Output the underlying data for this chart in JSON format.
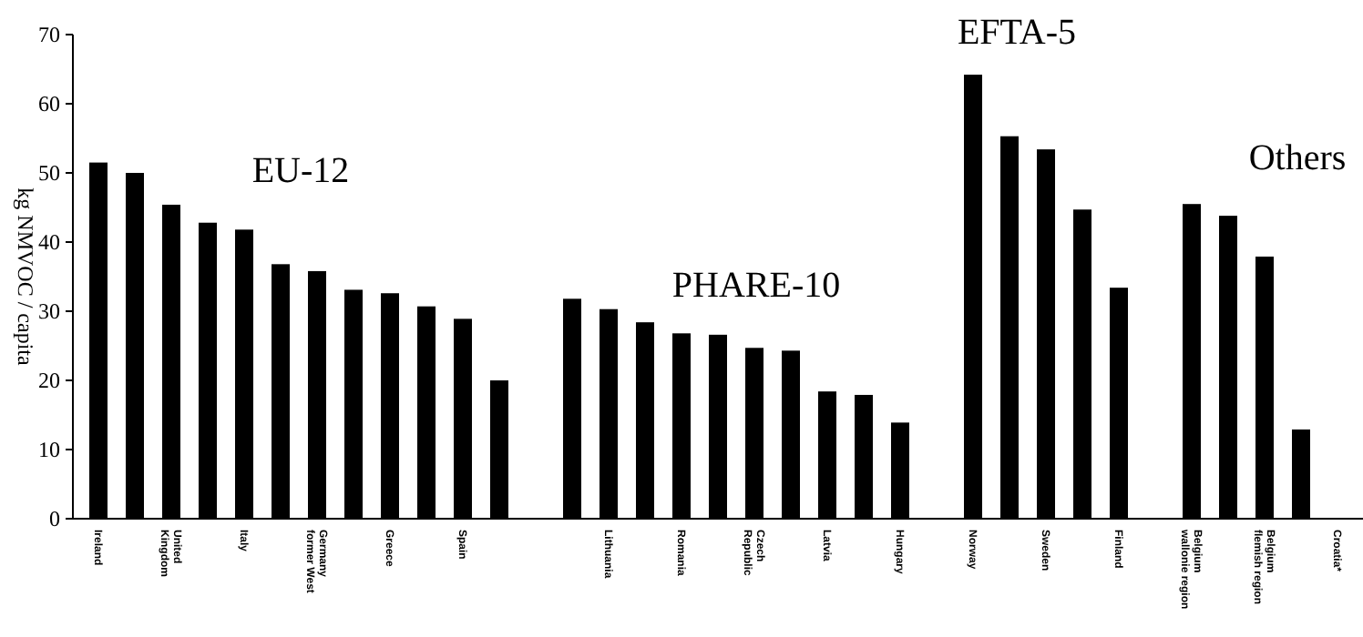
{
  "chart_data": {
    "type": "bar",
    "ylabel": "kg NMVOC / capita",
    "categories": [
      "Ireland",
      null,
      "United\nKingdom",
      null,
      "Italy",
      null,
      "Germany\nformer West",
      null,
      "Greece",
      null,
      "Spain",
      null,
      null,
      null,
      "Lithuania",
      null,
      "Romania",
      null,
      "Czech\nRepublic",
      null,
      "Latvia",
      null,
      "Hungary",
      null,
      "Norway",
      null,
      "Sweden",
      null,
      "Finland",
      null,
      "Belgium\nwallonie region",
      null,
      "Belgium\nflemish region",
      null,
      "Croatia*"
    ],
    "values": [
      51.5,
      50.0,
      45.4,
      42.8,
      41.8,
      36.8,
      35.8,
      33.1,
      32.6,
      30.7,
      28.9,
      20.0,
      null,
      31.8,
      30.3,
      28.4,
      26.8,
      26.6,
      24.7,
      24.3,
      18.4,
      17.9,
      13.9,
      null,
      64.2,
      55.3,
      53.4,
      44.7,
      33.4,
      null,
      45.5,
      43.8,
      37.9,
      12.9,
      null
    ],
    "color": "#000000",
    "ylim": [
      0,
      70
    ],
    "yticks": [
      0,
      10,
      20,
      30,
      40,
      50,
      60,
      70
    ],
    "grid": false,
    "annotations": [
      "EU-12",
      "PHARE-10",
      "EFTA-5",
      "Others"
    ]
  }
}
